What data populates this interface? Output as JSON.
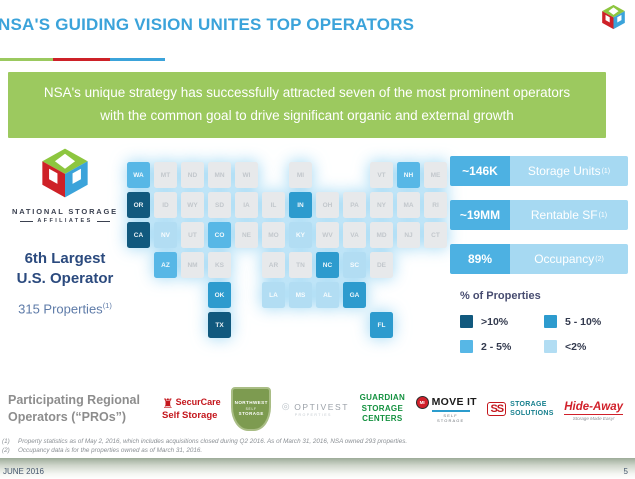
{
  "slide": {
    "title": "NSA'S GUIDING VISION UNITES TOP OPERATORS",
    "footer_date": "JUNE 2016",
    "page_number": "5"
  },
  "banner": {
    "line1": "NSA's unique strategy has successfully attracted seven of the most prominent operators",
    "line2": "with the common goal to drive significant organic and external growth",
    "background_color": "#9cc95f"
  },
  "left_panel": {
    "wordmark_line1": "NATIONAL STORAGE",
    "wordmark_line2": "AFFILIATES",
    "rank_line1": "6th Largest",
    "rank_line2": "U.S. Operator",
    "properties_text": "315 Properties",
    "properties_sup": "(1)"
  },
  "stats": [
    {
      "value": "~146K",
      "label": "Storage Units",
      "sup": "(1)"
    },
    {
      "value": "~19MM",
      "label": "Rentable SF",
      "sup": "(1)"
    },
    {
      "value": "89%",
      "label": "Occupancy",
      "sup": "(2)"
    }
  ],
  "legend": {
    "title": "% of Properties",
    "items": [
      {
        "label": ">10%",
        "color": "#11597e"
      },
      {
        "label": "5 - 10%",
        "color": "#2d9bce"
      },
      {
        "label": "2 - 5%",
        "color": "#57b7e6"
      },
      {
        "label": "<2%",
        "color": "#b2ddf3"
      }
    ]
  },
  "map": {
    "palette": {
      "gt10": "#11597e",
      "p5to10": "#2d9bce",
      "p2to5": "#57b7e6",
      "lt2": "#b2ddf3",
      "none": "#e7e9eb"
    },
    "states": [
      {
        "abbr": "WA",
        "col": 1,
        "row": 1,
        "cat": "p2to5"
      },
      {
        "abbr": "MT",
        "col": 2,
        "row": 1,
        "cat": "none"
      },
      {
        "abbr": "ND",
        "col": 3,
        "row": 1,
        "cat": "none"
      },
      {
        "abbr": "MN",
        "col": 4,
        "row": 1,
        "cat": "none"
      },
      {
        "abbr": "WI",
        "col": 5,
        "row": 1,
        "cat": "none"
      },
      {
        "abbr": "MI",
        "col": 7,
        "row": 1,
        "cat": "none"
      },
      {
        "abbr": "VT",
        "col": 10,
        "row": 1,
        "cat": "none"
      },
      {
        "abbr": "NH",
        "col": 11,
        "row": 1,
        "cat": "p2to5"
      },
      {
        "abbr": "ME",
        "col": 12,
        "row": 1,
        "cat": "none"
      },
      {
        "abbr": "OR",
        "col": 1,
        "row": 2,
        "cat": "gt10"
      },
      {
        "abbr": "ID",
        "col": 2,
        "row": 2,
        "cat": "none"
      },
      {
        "abbr": "WY",
        "col": 3,
        "row": 2,
        "cat": "none"
      },
      {
        "abbr": "SD",
        "col": 4,
        "row": 2,
        "cat": "none"
      },
      {
        "abbr": "IA",
        "col": 5,
        "row": 2,
        "cat": "none"
      },
      {
        "abbr": "IL",
        "col": 6,
        "row": 2,
        "cat": "none"
      },
      {
        "abbr": "IN",
        "col": 7,
        "row": 2,
        "cat": "p5to10"
      },
      {
        "abbr": "OH",
        "col": 8,
        "row": 2,
        "cat": "none"
      },
      {
        "abbr": "PA",
        "col": 9,
        "row": 2,
        "cat": "none"
      },
      {
        "abbr": "NY",
        "col": 10,
        "row": 2,
        "cat": "none"
      },
      {
        "abbr": "MA",
        "col": 11,
        "row": 2,
        "cat": "none"
      },
      {
        "abbr": "RI",
        "col": 12,
        "row": 2,
        "cat": "none"
      },
      {
        "abbr": "CA",
        "col": 1,
        "row": 3,
        "cat": "gt10"
      },
      {
        "abbr": "NV",
        "col": 2,
        "row": 3,
        "cat": "lt2"
      },
      {
        "abbr": "UT",
        "col": 3,
        "row": 3,
        "cat": "none"
      },
      {
        "abbr": "CO",
        "col": 4,
        "row": 3,
        "cat": "p2to5"
      },
      {
        "abbr": "NE",
        "col": 5,
        "row": 3,
        "cat": "none"
      },
      {
        "abbr": "MO",
        "col": 6,
        "row": 3,
        "cat": "none"
      },
      {
        "abbr": "KY",
        "col": 7,
        "row": 3,
        "cat": "lt2"
      },
      {
        "abbr": "WV",
        "col": 8,
        "row": 3,
        "cat": "none"
      },
      {
        "abbr": "VA",
        "col": 9,
        "row": 3,
        "cat": "none"
      },
      {
        "abbr": "MD",
        "col": 10,
        "row": 3,
        "cat": "none"
      },
      {
        "abbr": "NJ",
        "col": 11,
        "row": 3,
        "cat": "none"
      },
      {
        "abbr": "CT",
        "col": 12,
        "row": 3,
        "cat": "none"
      },
      {
        "abbr": "AZ",
        "col": 2,
        "row": 4,
        "cat": "p2to5"
      },
      {
        "abbr": "NM",
        "col": 3,
        "row": 4,
        "cat": "none"
      },
      {
        "abbr": "KS",
        "col": 4,
        "row": 4,
        "cat": "none"
      },
      {
        "abbr": "AR",
        "col": 6,
        "row": 4,
        "cat": "none"
      },
      {
        "abbr": "TN",
        "col": 7,
        "row": 4,
        "cat": "none"
      },
      {
        "abbr": "NC",
        "col": 8,
        "row": 4,
        "cat": "p5to10"
      },
      {
        "abbr": "SC",
        "col": 9,
        "row": 4,
        "cat": "lt2"
      },
      {
        "abbr": "DE",
        "col": 10,
        "row": 4,
        "cat": "none"
      },
      {
        "abbr": "OK",
        "col": 4,
        "row": 5,
        "cat": "p5to10"
      },
      {
        "abbr": "LA",
        "col": 6,
        "row": 5,
        "cat": "lt2"
      },
      {
        "abbr": "MS",
        "col": 7,
        "row": 5,
        "cat": "lt2"
      },
      {
        "abbr": "AL",
        "col": 8,
        "row": 5,
        "cat": "lt2"
      },
      {
        "abbr": "GA",
        "col": 9,
        "row": 5,
        "cat": "p5to10"
      },
      {
        "abbr": "TX",
        "col": 4,
        "row": 6,
        "cat": "gt10"
      },
      {
        "abbr": "FL",
        "col": 10,
        "row": 6,
        "cat": "p5to10"
      }
    ]
  },
  "chart_data": {
    "type": "heatmap",
    "title": "% of Properties",
    "categories": [
      ">10%",
      "5 - 10%",
      "2 - 5%",
      "<2%"
    ],
    "series": [
      {
        "name": ">10%",
        "states": [
          "OR",
          "CA",
          "TX"
        ]
      },
      {
        "name": "5 - 10%",
        "states": [
          "IN",
          "OK",
          "NC",
          "GA",
          "FL"
        ]
      },
      {
        "name": "2 - 5%",
        "states": [
          "WA",
          "AZ",
          "CO",
          "NH"
        ]
      },
      {
        "name": "<2%",
        "states": [
          "NV",
          "KY",
          "SC",
          "AL",
          "MS",
          "LA"
        ]
      }
    ],
    "legend_position": "right"
  },
  "pros": {
    "label_line1": "Participating Regional",
    "label_line2": "Operators (“PROs”)",
    "logos": {
      "securcare": {
        "name": "SecurCare",
        "sub": "Self Storage"
      },
      "northwest": {
        "line1": "NORTHWEST",
        "line2": "SELF",
        "line3": "STORAGE"
      },
      "optivest": {
        "name": "OPTIVEST",
        "sub": "PROPERTIES"
      },
      "guardian": {
        "line1": "GUARDIAN",
        "line2": "STORAGE",
        "line3": "CENTERS"
      },
      "moveit": {
        "badge": "MI",
        "name": "MOVE IT",
        "sub": "SELF STORAGE"
      },
      "storagesolutions": {
        "monogram": "SS",
        "line1": "STORAGE",
        "line2": "SOLUTIONS"
      },
      "hideaway": {
        "name": "Hide-Away",
        "sub": "Storage Made Easy!"
      }
    }
  },
  "footnotes": [
    {
      "marker": "(1)",
      "text": "Property statistics as of May 2, 2016, which includes acquisitions closed during Q2 2016. As of March 31, 2016, NSA owned 293 properties."
    },
    {
      "marker": "(2)",
      "text": "Occupancy data is for the properties owned as of March 31, 2016."
    }
  ]
}
